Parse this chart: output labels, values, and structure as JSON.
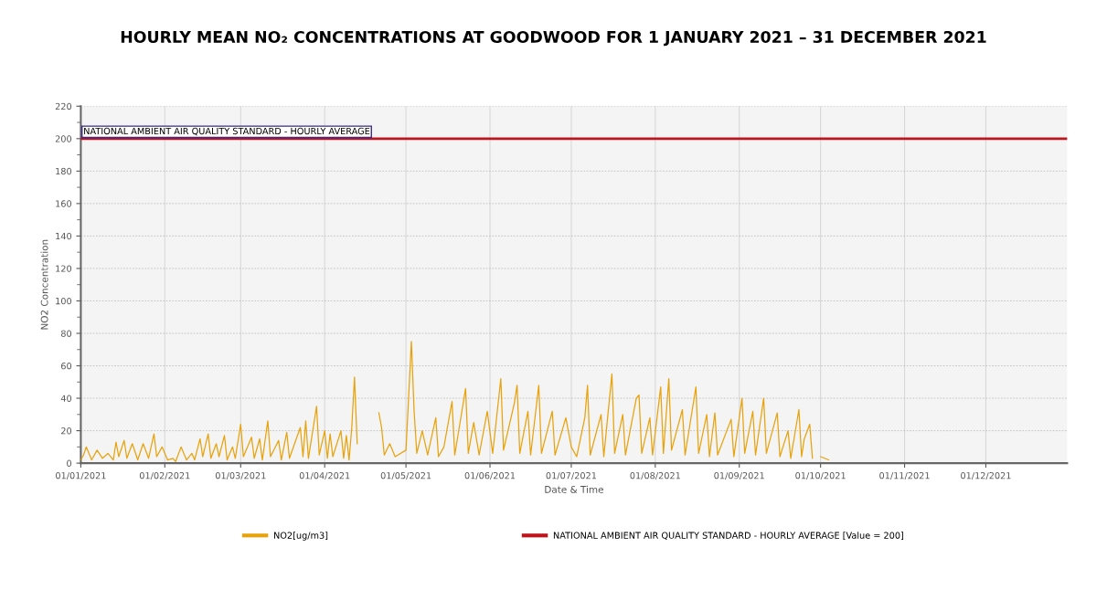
{
  "chart_data": {
    "type": "line",
    "title": "HOURLY MEAN NO₂ CONCENTRATIONS AT GOODWOOD FOR 1 JANUARY 2021 – 31 DECEMBER 2021",
    "xlabel": "Date & Time",
    "ylabel": "NO2 Concentration",
    "xlim": [
      "2021-01-01",
      "2021-12-31"
    ],
    "xticks": [
      {
        "value": "2021-01-01",
        "label": "01/01/2021"
      },
      {
        "value": "2021-02-01",
        "label": "01/02/2021"
      },
      {
        "value": "2021-03-01",
        "label": "01/03/2021"
      },
      {
        "value": "2021-04-01",
        "label": "01/04/2021"
      },
      {
        "value": "2021-05-01",
        "label": "01/05/2021"
      },
      {
        "value": "2021-06-01",
        "label": "01/06/2021"
      },
      {
        "value": "2021-07-01",
        "label": "01/07/2021"
      },
      {
        "value": "2021-08-01",
        "label": "01/08/2021"
      },
      {
        "value": "2021-09-01",
        "label": "01/09/2021"
      },
      {
        "value": "2021-10-01",
        "label": "01/10/2021"
      },
      {
        "value": "2021-11-01",
        "label": "01/11/2021"
      },
      {
        "value": "2021-12-01",
        "label": "01/12/2021"
      }
    ],
    "ylim": [
      0,
      220
    ],
    "yticks": [
      0,
      20,
      40,
      60,
      80,
      100,
      120,
      140,
      160,
      180,
      200,
      220
    ],
    "grid": true,
    "legend": "bottom",
    "series": [
      {
        "name": "NO2[ug/m3]",
        "color": "#e8a30c",
        "x": [
          "2021-01-01",
          "2021-01-02",
          "2021-01-03",
          "2021-01-05",
          "2021-01-07",
          "2021-01-09",
          "2021-01-11",
          "2021-01-13",
          "2021-01-14",
          "2021-01-15",
          "2021-01-17",
          "2021-01-18",
          "2021-01-20",
          "2021-01-22",
          "2021-01-24",
          "2021-01-26",
          "2021-01-28",
          "2021-01-29",
          "2021-01-31",
          "2021-02-02",
          "2021-02-04",
          "2021-02-05",
          "2021-02-07",
          "2021-02-09",
          "2021-02-11",
          "2021-02-12",
          "2021-02-14",
          "2021-02-15",
          "2021-02-17",
          "2021-02-18",
          "2021-02-20",
          "2021-02-21",
          "2021-02-23",
          "2021-02-24",
          "2021-02-26",
          "2021-02-27",
          "2021-03-01",
          "2021-03-02",
          "2021-03-05",
          "2021-03-06",
          "2021-03-08",
          "2021-03-09",
          "2021-03-11",
          "2021-03-12",
          "2021-03-15",
          "2021-03-16",
          "2021-03-18",
          "2021-03-19",
          "2021-03-23",
          "2021-03-24",
          "2021-03-25",
          "2021-03-26",
          "2021-03-29",
          "2021-03-30",
          "2021-04-01",
          "2021-04-02",
          "2021-04-03",
          "2021-04-04",
          "2021-04-07",
          "2021-04-08",
          "2021-04-09",
          "2021-04-10",
          "2021-04-11",
          "2021-04-12",
          "2021-04-13",
          "2021-04-14",
          "2021-04-21",
          "2021-04-22",
          "2021-04-23",
          "2021-04-25",
          "2021-04-27",
          "2021-05-01",
          "2021-05-03",
          "2021-05-04",
          "2021-05-05",
          "2021-05-07",
          "2021-05-09",
          "2021-05-12",
          "2021-05-13",
          "2021-05-15",
          "2021-05-18",
          "2021-05-19",
          "2021-05-23",
          "2021-05-24",
          "2021-05-26",
          "2021-05-28",
          "2021-05-31",
          "2021-06-02",
          "2021-06-05",
          "2021-06-06",
          "2021-06-10",
          "2021-06-11",
          "2021-06-12",
          "2021-06-15",
          "2021-06-16",
          "2021-06-19",
          "2021-06-20",
          "2021-06-24",
          "2021-06-25",
          "2021-06-29",
          "2021-07-01",
          "2021-07-03",
          "2021-07-06",
          "2021-07-07",
          "2021-07-08",
          "2021-07-12",
          "2021-07-13",
          "2021-07-16",
          "2021-07-17",
          "2021-07-20",
          "2021-07-21",
          "2021-07-25",
          "2021-07-26",
          "2021-07-27",
          "2021-07-30",
          "2021-07-31",
          "2021-08-03",
          "2021-08-04",
          "2021-08-06",
          "2021-08-07",
          "2021-08-11",
          "2021-08-12",
          "2021-08-16",
          "2021-08-17",
          "2021-08-20",
          "2021-08-21",
          "2021-08-23",
          "2021-08-24",
          "2021-08-29",
          "2021-08-30",
          "2021-09-02",
          "2021-09-03",
          "2021-09-06",
          "2021-09-07",
          "2021-09-10",
          "2021-09-11",
          "2021-09-15",
          "2021-09-16",
          "2021-09-19",
          "2021-09-20",
          "2021-09-23",
          "2021-09-24",
          "2021-09-25",
          "2021-09-27",
          "2021-09-28",
          "2021-09-29",
          "2021-10-01",
          "2021-10-04"
        ],
        "values": [
          2,
          5,
          10,
          2,
          8,
          3,
          6,
          2,
          13,
          4,
          14,
          3,
          12,
          2,
          12,
          3,
          18,
          4,
          10,
          2,
          3,
          1,
          10,
          2,
          6,
          2,
          15,
          4,
          18,
          3,
          12,
          4,
          17,
          2,
          10,
          3,
          24,
          4,
          16,
          3,
          15,
          2,
          26,
          4,
          14,
          2,
          19,
          3,
          22,
          4,
          26,
          3,
          35,
          5,
          20,
          3,
          18,
          4,
          20,
          3,
          17,
          2,
          22,
          53,
          12,
          null,
          31,
          22,
          5,
          12,
          4,
          8,
          75,
          32,
          6,
          20,
          5,
          28,
          4,
          10,
          38,
          5,
          46,
          6,
          25,
          5,
          32,
          6,
          52,
          8,
          37,
          48,
          6,
          32,
          5,
          48,
          6,
          32,
          5,
          28,
          10,
          4,
          28,
          48,
          5,
          30,
          4,
          55,
          6,
          30,
          5,
          40,
          42,
          6,
          28,
          5,
          47,
          6,
          52,
          8,
          33,
          5,
          47,
          6,
          30,
          4,
          31,
          5,
          27,
          4,
          40,
          6,
          32,
          5,
          40,
          6,
          31,
          4,
          20,
          3,
          33,
          4,
          15,
          24,
          3,
          null,
          4,
          2
        ]
      },
      {
        "name": "NATIONAL AMBIENT AIR QUALITY STANDARD - HOURLY AVERAGE [Value = 200]",
        "color": "#c0141c",
        "x": [
          "2021-01-01",
          "2021-12-31"
        ],
        "values": [
          200,
          200
        ]
      }
    ],
    "annotations": [
      {
        "text": "NATIONAL AMBIENT AIR QUALITY STANDARD - HOURLY AVERAGE",
        "x": "2021-01-01",
        "y": 200
      }
    ]
  }
}
